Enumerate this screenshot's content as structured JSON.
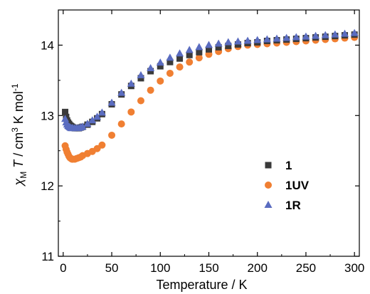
{
  "chart_data": {
    "type": "scatter",
    "xlabel": "Temperature / K",
    "ylabel_parts": {
      "chi": "χ",
      "sub": "M",
      "T": " T",
      "unit": " / cm",
      "sup3": "3",
      "unit2": " K mol",
      "supneg": "-1"
    },
    "xlim": [
      -5,
      305
    ],
    "ylim": [
      11,
      14.5
    ],
    "x_ticks": [
      0,
      50,
      100,
      150,
      200,
      250,
      300
    ],
    "y_ticks": [
      11,
      12,
      13,
      14
    ],
    "x_tick_labels": [
      "0",
      "50",
      "100",
      "150",
      "200",
      "250",
      "300"
    ],
    "y_tick_labels": [
      "11",
      "12",
      "13",
      "14"
    ],
    "legend_position": "center-right",
    "series": [
      {
        "name": "1",
        "marker": "square",
        "color": "#3a3a3a",
        "x": [
          2,
          3,
          4,
          5,
          6,
          7,
          8,
          9,
          10,
          12,
          14,
          16,
          18,
          20,
          25,
          30,
          35,
          40,
          50,
          60,
          70,
          80,
          90,
          100,
          110,
          120,
          130,
          140,
          150,
          160,
          170,
          180,
          190,
          200,
          210,
          220,
          230,
          240,
          250,
          260,
          270,
          280,
          290,
          300
        ],
        "y": [
          13.05,
          12.98,
          12.93,
          12.9,
          12.88,
          12.86,
          12.85,
          12.84,
          12.83,
          12.82,
          12.82,
          12.82,
          12.83,
          12.84,
          12.87,
          12.91,
          12.96,
          13.02,
          13.16,
          13.3,
          13.42,
          13.53,
          13.63,
          13.7,
          13.76,
          13.81,
          13.86,
          13.9,
          13.94,
          13.97,
          13.99,
          14.01,
          14.03,
          14.04,
          14.06,
          14.07,
          14.08,
          14.09,
          14.1,
          14.11,
          14.12,
          14.13,
          14.14,
          14.15
        ]
      },
      {
        "name": "1UV",
        "marker": "circle",
        "color": "#f07f32",
        "x": [
          2,
          3,
          4,
          5,
          6,
          7,
          8,
          9,
          10,
          12,
          14,
          16,
          18,
          20,
          25,
          30,
          35,
          40,
          50,
          60,
          70,
          80,
          90,
          100,
          110,
          120,
          130,
          140,
          150,
          160,
          170,
          180,
          190,
          200,
          210,
          220,
          230,
          240,
          250,
          260,
          270,
          280,
          290,
          300
        ],
        "y": [
          12.57,
          12.52,
          12.48,
          12.45,
          12.42,
          12.4,
          12.39,
          12.38,
          12.38,
          12.38,
          12.39,
          12.4,
          12.41,
          12.43,
          12.46,
          12.49,
          12.53,
          12.58,
          12.72,
          12.88,
          13.05,
          13.21,
          13.36,
          13.49,
          13.6,
          13.69,
          13.76,
          13.82,
          13.87,
          13.91,
          13.95,
          13.98,
          14.0,
          14.01,
          14.02,
          14.03,
          14.04,
          14.05,
          14.06,
          14.07,
          14.08,
          14.09,
          14.1,
          14.11
        ]
      },
      {
        "name": "1R",
        "marker": "triangle",
        "color": "#5a6cc0",
        "x": [
          2,
          3,
          4,
          5,
          6,
          7,
          8,
          9,
          10,
          12,
          14,
          16,
          18,
          20,
          25,
          30,
          35,
          40,
          50,
          60,
          70,
          80,
          90,
          100,
          110,
          120,
          130,
          140,
          150,
          160,
          170,
          180,
          190,
          200,
          210,
          220,
          230,
          240,
          250,
          260,
          270,
          280,
          290,
          300
        ],
        "y": [
          12.95,
          12.9,
          12.87,
          12.85,
          12.84,
          12.83,
          12.82,
          12.82,
          12.82,
          12.82,
          12.82,
          12.82,
          12.83,
          12.84,
          12.88,
          12.93,
          12.98,
          13.04,
          13.18,
          13.32,
          13.45,
          13.57,
          13.67,
          13.75,
          13.82,
          13.88,
          13.93,
          13.97,
          14.0,
          14.02,
          14.04,
          14.05,
          14.06,
          14.07,
          14.08,
          14.09,
          14.1,
          14.11,
          14.12,
          14.13,
          14.14,
          14.15,
          14.16,
          14.17
        ]
      }
    ]
  }
}
